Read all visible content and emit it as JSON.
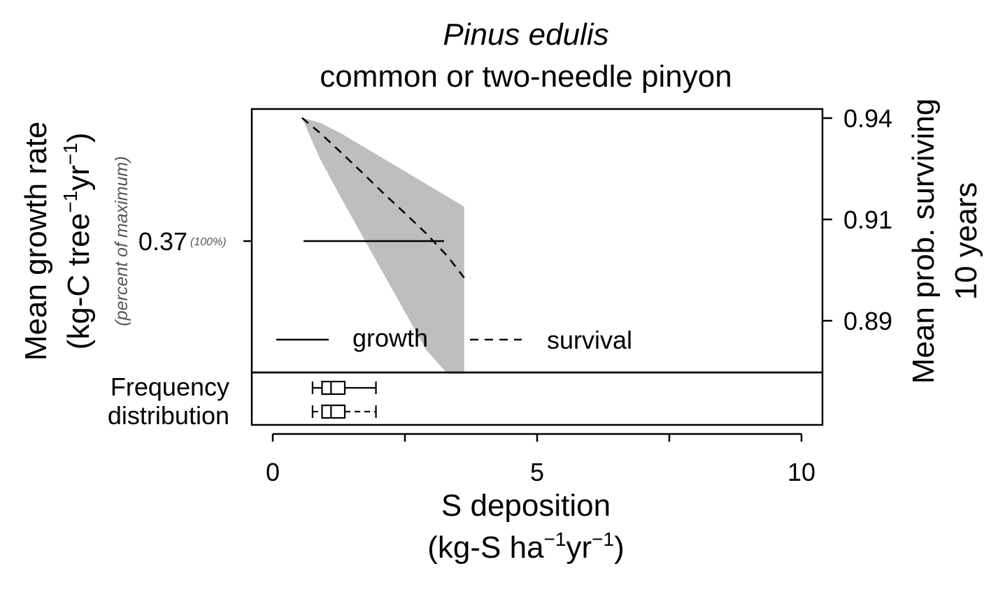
{
  "chart_data": {
    "type": "line",
    "title": "Pinus edulis",
    "subtitle": "common or two-needle pinyon",
    "xlabel_line1": "S deposition",
    "xlabel_unit_pre": "(kg-S ha",
    "xlabel_unit_exp1": "−1",
    "xlabel_unit_mid": "yr",
    "xlabel_unit_exp2": "−1",
    "xlabel_unit_post": ")",
    "ylabel_line1": "Mean growth rate",
    "ylabel_unit_pre": "(kg-C tree",
    "ylabel_unit_exp1": "−1",
    "ylabel_unit_mid": "yr",
    "ylabel_unit_exp2": "−1",
    "ylabel_unit_post": ")",
    "ylabel_note": "(percent of maximum)",
    "y2label_line1": "Mean prob. surviving",
    "y2label_line2": "10 years",
    "xlim": [
      -0.4,
      10.4
    ],
    "x_ticks": [
      "0",
      "5",
      "10"
    ],
    "left_tick_value": "0.37",
    "left_tick_note": "(100%)",
    "y2lim": [
      0.8788,
      0.9417
    ],
    "y2_ticks": [
      "0.94",
      "0.91",
      "0.89"
    ],
    "legend": {
      "growth": "growth",
      "survival": "survival",
      "position": "bottom"
    },
    "freq_label_line1": "Frequency",
    "freq_label_line2": "distribution",
    "series": [
      {
        "name": "growth",
        "style": "solid",
        "x": [
          0.58,
          3.24
        ],
        "y": [
          0.37,
          0.37
        ]
      },
      {
        "name": "survival",
        "style": "dashed",
        "x": [
          0.55,
          0.9,
          1.3,
          1.7,
          2.1,
          2.5,
          2.9,
          3.3,
          3.62
        ],
        "y": [
          0.9396,
          0.9359,
          0.9312,
          0.9264,
          0.9215,
          0.9168,
          0.912,
          0.9066,
          0.9014
        ],
        "ci_upper": [
          0.9396,
          0.9384,
          0.9358,
          0.9328,
          0.9298,
          0.9268,
          0.9238,
          0.9208,
          0.9184
        ],
        "ci_lower": [
          0.9396,
          0.9296,
          0.9203,
          0.9112,
          0.9022,
          0.8932,
          0.8842,
          0.8785,
          0.8785
        ],
        "ci_color": "#bebebe"
      }
    ],
    "boxplots": [
      {
        "min": 0.75,
        "q1": 0.93,
        "median": 1.1,
        "q3": 1.36,
        "max": 1.95
      },
      {
        "min": 0.75,
        "q1": 0.93,
        "median": 1.1,
        "q3": 1.36,
        "max": 1.95
      }
    ]
  }
}
